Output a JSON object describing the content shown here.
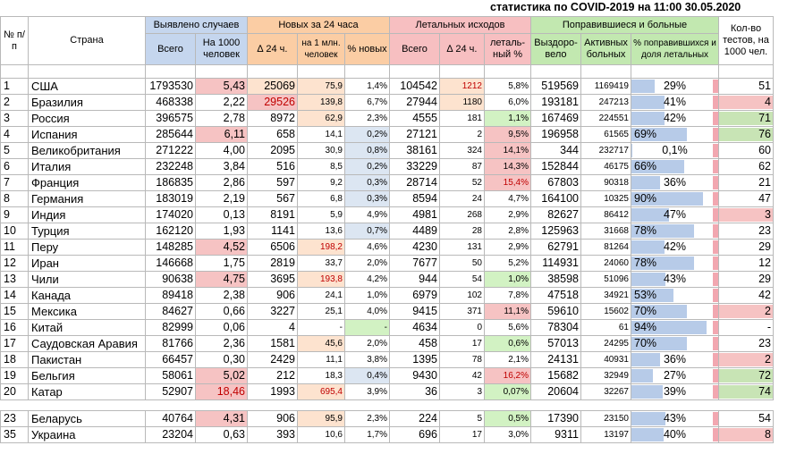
{
  "title": "статистика по COVID-2019 на 11:00 30.05.2020",
  "headers": {
    "num": "№ п/п",
    "country": "Страна",
    "cases_group": "Выявлено случаев",
    "new_group": "Новых за 24 часа",
    "deaths_group": "Летальных исходов",
    "recovered_group": "Поправившиеся и больные",
    "tests": "Кол-во тестов, на 1000 чел.",
    "total": "Всего",
    "per1000": "На 1000 человек",
    "d24": "∆ 24 ч.",
    "per1m": "на 1 млн. человек",
    "pct_new": "% новых",
    "deaths_total": "Всего",
    "deaths_d24": "∆ 24 ч.",
    "lethal_pct": "леталь-ный %",
    "recovered": "Выздоро-вело",
    "active": "Активных больных",
    "rec_pct": "% поправившихся и доля летальных"
  },
  "rows": [
    {
      "n": "1",
      "country": "США",
      "total": "1793530",
      "per1000": "5,43",
      "d24": "25069",
      "per1m": "75,9",
      "pct_new": "1,4%",
      "deaths": "104542",
      "deaths_d24": "1212",
      "lethal": "5,8%",
      "recovered": "519569",
      "active": "1169419",
      "rec_pct": "29%",
      "rec_val": 29,
      "tests": "51",
      "tests_val": 51
    },
    {
      "n": "2",
      "country": "Бразилия",
      "total": "468338",
      "per1000": "2,22",
      "d24": "29526",
      "per1m": "139,8",
      "pct_new": "6,7%",
      "deaths": "27944",
      "deaths_d24": "1180",
      "lethal": "6,0%",
      "recovered": "193181",
      "active": "247213",
      "rec_pct": "41%",
      "rec_val": 41,
      "tests": "4",
      "tests_val": 4
    },
    {
      "n": "3",
      "country": "Россия",
      "total": "396575",
      "per1000": "2,78",
      "d24": "8972",
      "per1m": "62,9",
      "pct_new": "2,3%",
      "deaths": "4555",
      "deaths_d24": "181",
      "lethal": "1,1%",
      "recovered": "167469",
      "active": "224551",
      "rec_pct": "42%",
      "rec_val": 42,
      "tests": "71",
      "tests_val": 71
    },
    {
      "n": "4",
      "country": "Испания",
      "total": "285644",
      "per1000": "6,11",
      "d24": "658",
      "per1m": "14,1",
      "pct_new": "0,2%",
      "deaths": "27121",
      "deaths_d24": "2",
      "lethal": "9,5%",
      "recovered": "196958",
      "active": "61565",
      "rec_pct": "69%",
      "rec_val": 69,
      "tests": "76",
      "tests_val": 76
    },
    {
      "n": "5",
      "country": "Великобритания",
      "total": "271222",
      "per1000": "4,00",
      "d24": "2095",
      "per1m": "30,9",
      "pct_new": "0,8%",
      "deaths": "38161",
      "deaths_d24": "324",
      "lethal": "14,1%",
      "recovered": "344",
      "active": "232717",
      "rec_pct": "0,1%",
      "rec_val": 0.1,
      "tests": "60",
      "tests_val": 60
    },
    {
      "n": "6",
      "country": "Италия",
      "total": "232248",
      "per1000": "3,84",
      "d24": "516",
      "per1m": "8,5",
      "pct_new": "0,2%",
      "deaths": "33229",
      "deaths_d24": "87",
      "lethal": "14,3%",
      "recovered": "152844",
      "active": "46175",
      "rec_pct": "66%",
      "rec_val": 66,
      "tests": "62",
      "tests_val": 62
    },
    {
      "n": "7",
      "country": "Франция",
      "total": "186835",
      "per1000": "2,86",
      "d24": "597",
      "per1m": "9,2",
      "pct_new": "0,3%",
      "deaths": "28714",
      "deaths_d24": "52",
      "lethal": "15,4%",
      "recovered": "67803",
      "active": "90318",
      "rec_pct": "36%",
      "rec_val": 36,
      "tests": "21",
      "tests_val": 21
    },
    {
      "n": "8",
      "country": "Германия",
      "total": "183019",
      "per1000": "2,19",
      "d24": "567",
      "per1m": "6,8",
      "pct_new": "0,3%",
      "deaths": "8594",
      "deaths_d24": "24",
      "lethal": "4,7%",
      "recovered": "164100",
      "active": "10325",
      "rec_pct": "90%",
      "rec_val": 90,
      "tests": "47",
      "tests_val": 47
    },
    {
      "n": "9",
      "country": "Индия",
      "total": "174020",
      "per1000": "0,13",
      "d24": "8191",
      "per1m": "5,9",
      "pct_new": "4,9%",
      "deaths": "4981",
      "deaths_d24": "268",
      "lethal": "2,9%",
      "recovered": "82627",
      "active": "86412",
      "rec_pct": "47%",
      "rec_val": 47,
      "tests": "3",
      "tests_val": 3
    },
    {
      "n": "10",
      "country": "Турция",
      "total": "162120",
      "per1000": "1,93",
      "d24": "1141",
      "per1m": "13,6",
      "pct_new": "0,7%",
      "deaths": "4489",
      "deaths_d24": "28",
      "lethal": "2,8%",
      "recovered": "125963",
      "active": "31668",
      "rec_pct": "78%",
      "rec_val": 78,
      "tests": "23",
      "tests_val": 23
    },
    {
      "n": "11",
      "country": "Перу",
      "total": "148285",
      "per1000": "4,52",
      "d24": "6506",
      "per1m": "198,2",
      "pct_new": "4,6%",
      "deaths": "4230",
      "deaths_d24": "131",
      "lethal": "2,9%",
      "recovered": "62791",
      "active": "81264",
      "rec_pct": "42%",
      "rec_val": 42,
      "tests": "29",
      "tests_val": 29
    },
    {
      "n": "12",
      "country": "Иран",
      "total": "146668",
      "per1000": "1,75",
      "d24": "2819",
      "per1m": "33,7",
      "pct_new": "2,0%",
      "deaths": "7677",
      "deaths_d24": "50",
      "lethal": "5,2%",
      "recovered": "114931",
      "active": "24060",
      "rec_pct": "78%",
      "rec_val": 78,
      "tests": "12",
      "tests_val": 12
    },
    {
      "n": "13",
      "country": "Чили",
      "total": "90638",
      "per1000": "4,75",
      "d24": "3695",
      "per1m": "193,8",
      "pct_new": "4,2%",
      "deaths": "944",
      "deaths_d24": "54",
      "lethal": "1,0%",
      "recovered": "38598",
      "active": "51096",
      "rec_pct": "43%",
      "rec_val": 43,
      "tests": "29",
      "tests_val": 29
    },
    {
      "n": "14",
      "country": "Канада",
      "total": "89418",
      "per1000": "2,38",
      "d24": "906",
      "per1m": "24,1",
      "pct_new": "1,0%",
      "deaths": "6979",
      "deaths_d24": "102",
      "lethal": "7,8%",
      "recovered": "47518",
      "active": "34921",
      "rec_pct": "53%",
      "rec_val": 53,
      "tests": "42",
      "tests_val": 42
    },
    {
      "n": "15",
      "country": "Мексика",
      "total": "84627",
      "per1000": "0,66",
      "d24": "3227",
      "per1m": "25,1",
      "pct_new": "4,0%",
      "deaths": "9415",
      "deaths_d24": "371",
      "lethal": "11,1%",
      "recovered": "59610",
      "active": "15602",
      "rec_pct": "70%",
      "rec_val": 70,
      "tests": "2",
      "tests_val": 2
    },
    {
      "n": "16",
      "country": "Китай",
      "total": "82999",
      "per1000": "0,06",
      "d24": "4",
      "per1m": "-",
      "pct_new": "-",
      "deaths": "4634",
      "deaths_d24": "0",
      "lethal": "5,6%",
      "recovered": "78304",
      "active": "61",
      "rec_pct": "94%",
      "rec_val": 94,
      "tests": "-",
      "tests_val": 0
    },
    {
      "n": "17",
      "country": "Саудовская Аравия",
      "total": "81766",
      "per1000": "2,36",
      "d24": "1581",
      "per1m": "45,6",
      "pct_new": "2,0%",
      "deaths": "458",
      "deaths_d24": "17",
      "lethal": "0,6%",
      "recovered": "57013",
      "active": "24295",
      "rec_pct": "70%",
      "rec_val": 70,
      "tests": "23",
      "tests_val": 23
    },
    {
      "n": "18",
      "country": "Пакистан",
      "total": "66457",
      "per1000": "0,30",
      "d24": "2429",
      "per1m": "11,1",
      "pct_new": "3,8%",
      "deaths": "1395",
      "deaths_d24": "78",
      "lethal": "2,1%",
      "recovered": "24131",
      "active": "40931",
      "rec_pct": "36%",
      "rec_val": 36,
      "tests": "2",
      "tests_val": 2
    },
    {
      "n": "19",
      "country": "Бельгия",
      "total": "58061",
      "per1000": "5,02",
      "d24": "212",
      "per1m": "18,3",
      "pct_new": "0,4%",
      "deaths": "9430",
      "deaths_d24": "42",
      "lethal": "16,2%",
      "recovered": "15682",
      "active": "32949",
      "rec_pct": "27%",
      "rec_val": 27,
      "tests": "72",
      "tests_val": 72
    },
    {
      "n": "20",
      "country": "Катар",
      "total": "52907",
      "per1000": "18,46",
      "d24": "1993",
      "per1m": "695,4",
      "pct_new": "3,9%",
      "deaths": "36",
      "deaths_d24": "3",
      "lethal": "0,07%",
      "recovered": "20604",
      "active": "32267",
      "rec_pct": "39%",
      "rec_val": 39,
      "tests": "74",
      "tests_val": 74
    }
  ],
  "extra_rows": [
    {
      "n": "23",
      "country": "Беларусь",
      "total": "40764",
      "per1000": "4,31",
      "d24": "906",
      "per1m": "95,9",
      "pct_new": "2,3%",
      "deaths": "224",
      "deaths_d24": "5",
      "lethal": "0,5%",
      "recovered": "17390",
      "active": "23150",
      "rec_pct": "43%",
      "rec_val": 43,
      "tests": "54",
      "tests_val": 54
    },
    {
      "n": "35",
      "country": "Украина",
      "total": "23204",
      "per1000": "0,63",
      "d24": "393",
      "per1m": "10,6",
      "pct_new": "1,7%",
      "deaths": "696",
      "deaths_d24": "17",
      "lethal": "3,0%",
      "recovered": "9311",
      "active": "13197",
      "rec_pct": "40%",
      "rec_val": 40,
      "tests": "8",
      "tests_val": 8
    }
  ],
  "colors": {
    "header_blue": "#c5d6ee",
    "header_orange": "#fbcda4",
    "header_red": "#f7bfc1",
    "header_green": "#c2e8b0",
    "bar_blue": "#b7cbe8",
    "highlight_red": "#c00000"
  }
}
